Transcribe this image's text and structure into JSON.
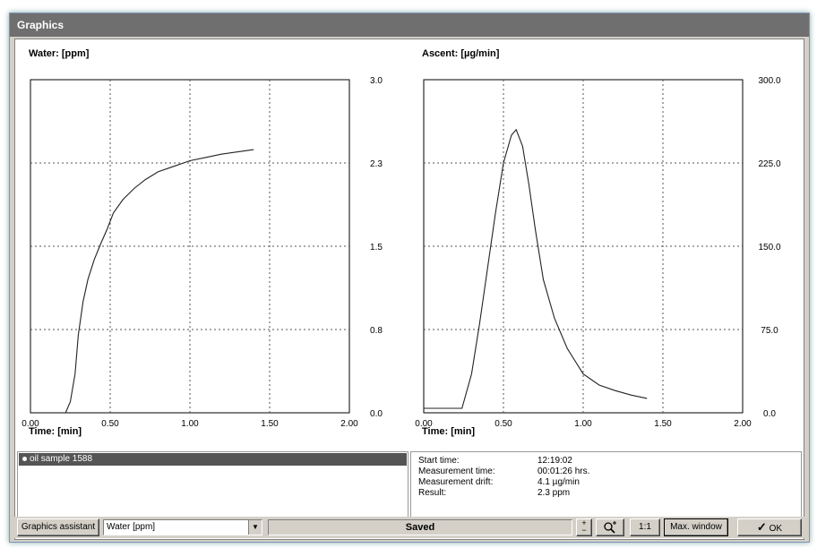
{
  "window": {
    "title": "Graphics"
  },
  "charts": [
    {
      "id": "water",
      "title": "Water: [ppm]",
      "xlabel": "Time: [min]",
      "x_ticks": [
        "0.00",
        "0.50",
        "1.00",
        "1.50",
        "2.00"
      ],
      "y_ticks": [
        "0.0",
        "0.8",
        "1.5",
        "2.3",
        "3.0"
      ]
    },
    {
      "id": "ascent",
      "title": "Ascent: [µg/min]",
      "xlabel": "Time: [min]",
      "x_ticks": [
        "0.00",
        "0.50",
        "1.00",
        "1.50",
        "2.00"
      ],
      "y_ticks": [
        "0.0",
        "75.0",
        "150.0",
        "225.0",
        "300.0"
      ]
    }
  ],
  "chart_data": [
    {
      "type": "line",
      "title": "Water: [ppm]",
      "xlabel": "Time: [min]",
      "ylabel": "",
      "xlim": [
        0,
        2.0
      ],
      "ylim": [
        0,
        3.0
      ],
      "grid": true,
      "y_axis_side": "right",
      "series": [
        {
          "x": [
            0.22,
            0.25,
            0.28,
            0.3,
            0.33,
            0.36,
            0.4,
            0.44,
            0.48,
            0.52,
            0.58,
            0.65,
            0.72,
            0.8,
            0.9,
            1.0,
            1.1,
            1.2,
            1.3,
            1.4
          ],
          "values": [
            0.0,
            0.1,
            0.35,
            0.7,
            1.0,
            1.2,
            1.38,
            1.52,
            1.65,
            1.8,
            1.92,
            2.02,
            2.1,
            2.17,
            2.22,
            2.27,
            2.3,
            2.33,
            2.35,
            2.37
          ]
        }
      ]
    },
    {
      "type": "line",
      "title": "Ascent: [µg/min]",
      "xlabel": "Time: [min]",
      "ylabel": "",
      "xlim": [
        0,
        2.0
      ],
      "ylim": [
        0,
        300.0
      ],
      "grid": true,
      "y_axis_side": "right",
      "series": [
        {
          "x": [
            0.0,
            0.24,
            0.3,
            0.35,
            0.4,
            0.45,
            0.5,
            0.55,
            0.58,
            0.62,
            0.66,
            0.7,
            0.75,
            0.82,
            0.9,
            1.0,
            1.1,
            1.2,
            1.3,
            1.4
          ],
          "values": [
            4,
            4,
            35,
            80,
            130,
            180,
            225,
            250,
            255,
            240,
            205,
            165,
            120,
            85,
            58,
            35,
            25,
            20,
            16,
            13
          ]
        }
      ]
    }
  ],
  "samples": [
    {
      "label": "oil sample 1588",
      "selected": true
    }
  ],
  "results": [
    {
      "label": "Start time:",
      "value": "12:19:02"
    },
    {
      "label": "Measurement time:",
      "value": "00:01:26 hrs."
    },
    {
      "label": "Measurement drift:",
      "value": "4.1 µg/min"
    },
    {
      "label": "Result:",
      "value": "2.3 ppm"
    }
  ],
  "toolbar": {
    "graphics_assistant_label": "Graphics assistant",
    "graph_select_value": "Water [ppm]",
    "status_text": "Saved",
    "zoom_icon": "zoom-in-icon",
    "ratio_label": "1:1",
    "max_window_label": "Max. window",
    "ok_label": "OK",
    "ok_icon": "checkmark-icon"
  }
}
